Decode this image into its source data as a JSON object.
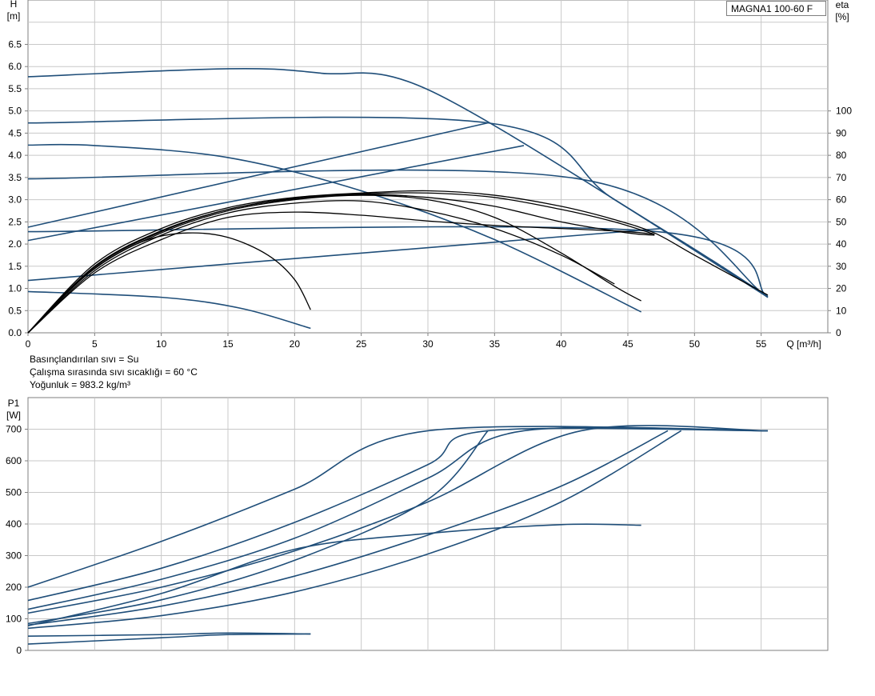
{
  "model": "MAGNA1 100-60 F",
  "info": [
    "Basınçlandırılan sıvı = Su",
    "Çalışma sırasında sıvı sıcaklığı = 60 °C",
    "Yoğunluk = 983.2 kg/m³"
  ],
  "colors": {
    "blue": "#1f4e79",
    "black": "#000000",
    "grid": "#c8c8c8",
    "axis": "#7f7f7f"
  },
  "chart_data": [
    {
      "type": "line",
      "title": "",
      "ylabel_top": "H",
      "ylabel_unit": "[m]",
      "y2label_top": "eta",
      "y2label_unit": "[%]",
      "xlabel": "Q [m³/h]",
      "xlim": [
        0,
        60
      ],
      "ylim": [
        0,
        7.5
      ],
      "y2lim": [
        0,
        150
      ],
      "x_ticks": [
        "0",
        "5",
        "10",
        "15",
        "20",
        "25",
        "30",
        "35",
        "40",
        "45",
        "50",
        "55"
      ],
      "y_ticks": [
        "0.0",
        "0.5",
        "1.0",
        "1.5",
        "2.0",
        "2.5",
        "3.0",
        "3.5",
        "4.0",
        "4.5",
        "5.0",
        "5.5",
        "6.0",
        "6.5"
      ],
      "y2_ticks": [
        "0",
        "10",
        "20",
        "30",
        "40",
        "50",
        "60",
        "70",
        "80",
        "90",
        "100"
      ],
      "series": [
        {
          "color": "blue",
          "points": [
            [
              0,
              5.77
            ],
            [
              15,
              5.95
            ],
            [
              22,
              5.85
            ],
            [
              30,
              5.48
            ],
            [
              47.5,
              2.35
            ],
            [
              55.5,
              0.82
            ]
          ]
        },
        {
          "color": "blue",
          "points": [
            [
              0,
              4.73
            ],
            [
              34.5,
              4.73
            ],
            [
              44,
              3.0
            ],
            [
              55.5,
              0.8
            ]
          ]
        },
        {
          "color": "blue",
          "points": [
            [
              0,
              3.47
            ],
            [
              41.3,
              3.47
            ],
            [
              55.5,
              0.8
            ]
          ]
        },
        {
          "color": "blue",
          "points": [
            [
              0,
              2.28
            ],
            [
              47.2,
              2.28
            ],
            [
              55.5,
              0.8
            ]
          ]
        },
        {
          "color": "blue",
          "points": [
            [
              0,
              4.23
            ],
            [
              5,
              4.22
            ],
            [
              15,
              3.95
            ],
            [
              25,
              3.2
            ],
            [
              35,
              2.1
            ],
            [
              46,
              0.47
            ]
          ]
        },
        {
          "color": "blue",
          "points": [
            [
              0,
              0.93
            ],
            [
              10,
              0.8
            ],
            [
              16,
              0.55
            ],
            [
              21.2,
              0.1
            ]
          ]
        },
        {
          "color": "blue",
          "points": [
            [
              0,
              2.38
            ],
            [
              34.5,
              4.73
            ]
          ]
        },
        {
          "color": "blue",
          "points": [
            [
              0,
              2.08
            ],
            [
              37.2,
              4.22
            ]
          ]
        },
        {
          "color": "blue",
          "points": [
            [
              0,
              1.18
            ],
            [
              47.5,
              2.35
            ]
          ]
        },
        {
          "color": "black",
          "points": [
            [
              0,
              0
            ],
            [
              5,
              1.55
            ],
            [
              10,
              2.35
            ],
            [
              15,
              2.82
            ],
            [
              20,
              3.05
            ],
            [
              25,
              3.15
            ],
            [
              30,
              3.2
            ],
            [
              35,
              3.1
            ],
            [
              40,
              2.85
            ],
            [
              44,
              2.55
            ],
            [
              47,
              2.25
            ],
            [
              50,
              1.75
            ],
            [
              55.5,
              0.85
            ]
          ]
        },
        {
          "color": "black",
          "points": [
            [
              0,
              0
            ],
            [
              5,
              1.5
            ],
            [
              10,
              2.3
            ],
            [
              15,
              2.78
            ],
            [
              20,
              3.02
            ],
            [
              25,
              3.13
            ],
            [
              30,
              3.15
            ],
            [
              35,
              3.05
            ],
            [
              40,
              2.78
            ],
            [
              44,
              2.5
            ],
            [
              47,
              2.22
            ]
          ]
        },
        {
          "color": "black",
          "points": [
            [
              0,
              0
            ],
            [
              5,
              1.48
            ],
            [
              10,
              2.28
            ],
            [
              15,
              2.78
            ],
            [
              20,
              3.03
            ],
            [
              25,
              3.12
            ],
            [
              30,
              3.05
            ],
            [
              35,
              2.85
            ],
            [
              40,
              2.5
            ],
            [
              45,
              2.25
            ],
            [
              47,
              2.2
            ]
          ]
        },
        {
          "color": "black",
          "points": [
            [
              0,
              0
            ],
            [
              5,
              1.45
            ],
            [
              10,
              2.25
            ],
            [
              15,
              2.75
            ],
            [
              20,
              3.0
            ],
            [
              25,
              3.1
            ],
            [
              30,
              3.0
            ],
            [
              35,
              2.6
            ],
            [
              40,
              1.8
            ],
            [
              44,
              1.05
            ],
            [
              46,
              0.72
            ]
          ]
        },
        {
          "color": "black",
          "points": [
            [
              0,
              0
            ],
            [
              5,
              1.4
            ],
            [
              10,
              2.2
            ],
            [
              15,
              2.7
            ],
            [
              20,
              2.92
            ],
            [
              25,
              2.97
            ],
            [
              30,
              2.75
            ],
            [
              35,
              2.35
            ],
            [
              40,
              1.75
            ],
            [
              44,
              1.1
            ]
          ]
        },
        {
          "color": "black",
          "points": [
            [
              0,
              0
            ],
            [
              5,
              1.35
            ],
            [
              10,
              2.1
            ],
            [
              15,
              2.6
            ],
            [
              20,
              2.72
            ],
            [
              25,
              2.65
            ],
            [
              30,
              2.52
            ],
            [
              35,
              2.42
            ],
            [
              40,
              2.35
            ],
            [
              45,
              2.28
            ],
            [
              47,
              2.22
            ]
          ]
        },
        {
          "color": "black",
          "points": [
            [
              0,
              0
            ],
            [
              3,
              0.95
            ],
            [
              6,
              1.65
            ],
            [
              9,
              2.1
            ],
            [
              12,
              2.25
            ],
            [
              15,
              2.15
            ],
            [
              18,
              1.75
            ],
            [
              20,
              1.2
            ],
            [
              21.2,
              0.52
            ]
          ]
        }
      ]
    },
    {
      "type": "line",
      "title": "",
      "ylabel_top": "P1",
      "ylabel_unit": "[W]",
      "xlim": [
        0,
        60
      ],
      "ylim": [
        0,
        800
      ],
      "y_ticks": [
        "0",
        "100",
        "200",
        "300",
        "400",
        "500",
        "600",
        "700"
      ],
      "series": [
        {
          "color": "blue",
          "points": [
            [
              0,
              200
            ],
            [
              10,
              345
            ],
            [
              20,
              510
            ],
            [
              30,
              695
            ],
            [
              55.5,
              695
            ]
          ]
        },
        {
          "color": "blue",
          "points": [
            [
              0,
              158
            ],
            [
              10,
              260
            ],
            [
              20,
              405
            ],
            [
              30,
              588
            ],
            [
              34.5,
              695
            ],
            [
              55.5,
              695
            ]
          ]
        },
        {
          "color": "blue",
          "points": [
            [
              0,
              130
            ],
            [
              10,
              225
            ],
            [
              20,
              355
            ],
            [
              30,
              545
            ],
            [
              37.2,
              695
            ],
            [
              55.5,
              695
            ]
          ]
        },
        {
          "color": "blue",
          "points": [
            [
              0,
              118
            ],
            [
              10,
              200
            ],
            [
              20,
              315
            ],
            [
              30,
              470
            ],
            [
              41.5,
              695
            ],
            [
              55.5,
              695
            ]
          ]
        },
        {
          "color": "blue",
          "points": [
            [
              0,
              85
            ],
            [
              10,
              160
            ],
            [
              20,
              285
            ],
            [
              30,
              478
            ],
            [
              34.5,
              695
            ]
          ]
        },
        {
          "color": "blue",
          "points": [
            [
              0,
              80
            ],
            [
              10,
              140
            ],
            [
              20,
              235
            ],
            [
              30,
              365
            ],
            [
              40,
              520
            ],
            [
              48,
              695
            ]
          ]
        },
        {
          "color": "blue",
          "points": [
            [
              0,
              70
            ],
            [
              10,
              110
            ],
            [
              20,
              185
            ],
            [
              30,
              305
            ],
            [
              40,
              470
            ],
            [
              49,
              695
            ]
          ]
        },
        {
          "color": "blue",
          "points": [
            [
              0,
              78
            ],
            [
              10,
              180
            ],
            [
              20,
              320
            ],
            [
              30,
              370
            ],
            [
              40,
              398
            ],
            [
              46,
              396
            ]
          ]
        },
        {
          "color": "blue",
          "points": [
            [
              0,
              45
            ],
            [
              10,
              50
            ],
            [
              15,
              55
            ],
            [
              21.2,
              52
            ]
          ]
        },
        {
          "color": "blue",
          "points": [
            [
              0,
              20
            ],
            [
              10,
              40
            ],
            [
              15,
              50
            ],
            [
              21.2,
              52
            ]
          ]
        }
      ]
    }
  ]
}
